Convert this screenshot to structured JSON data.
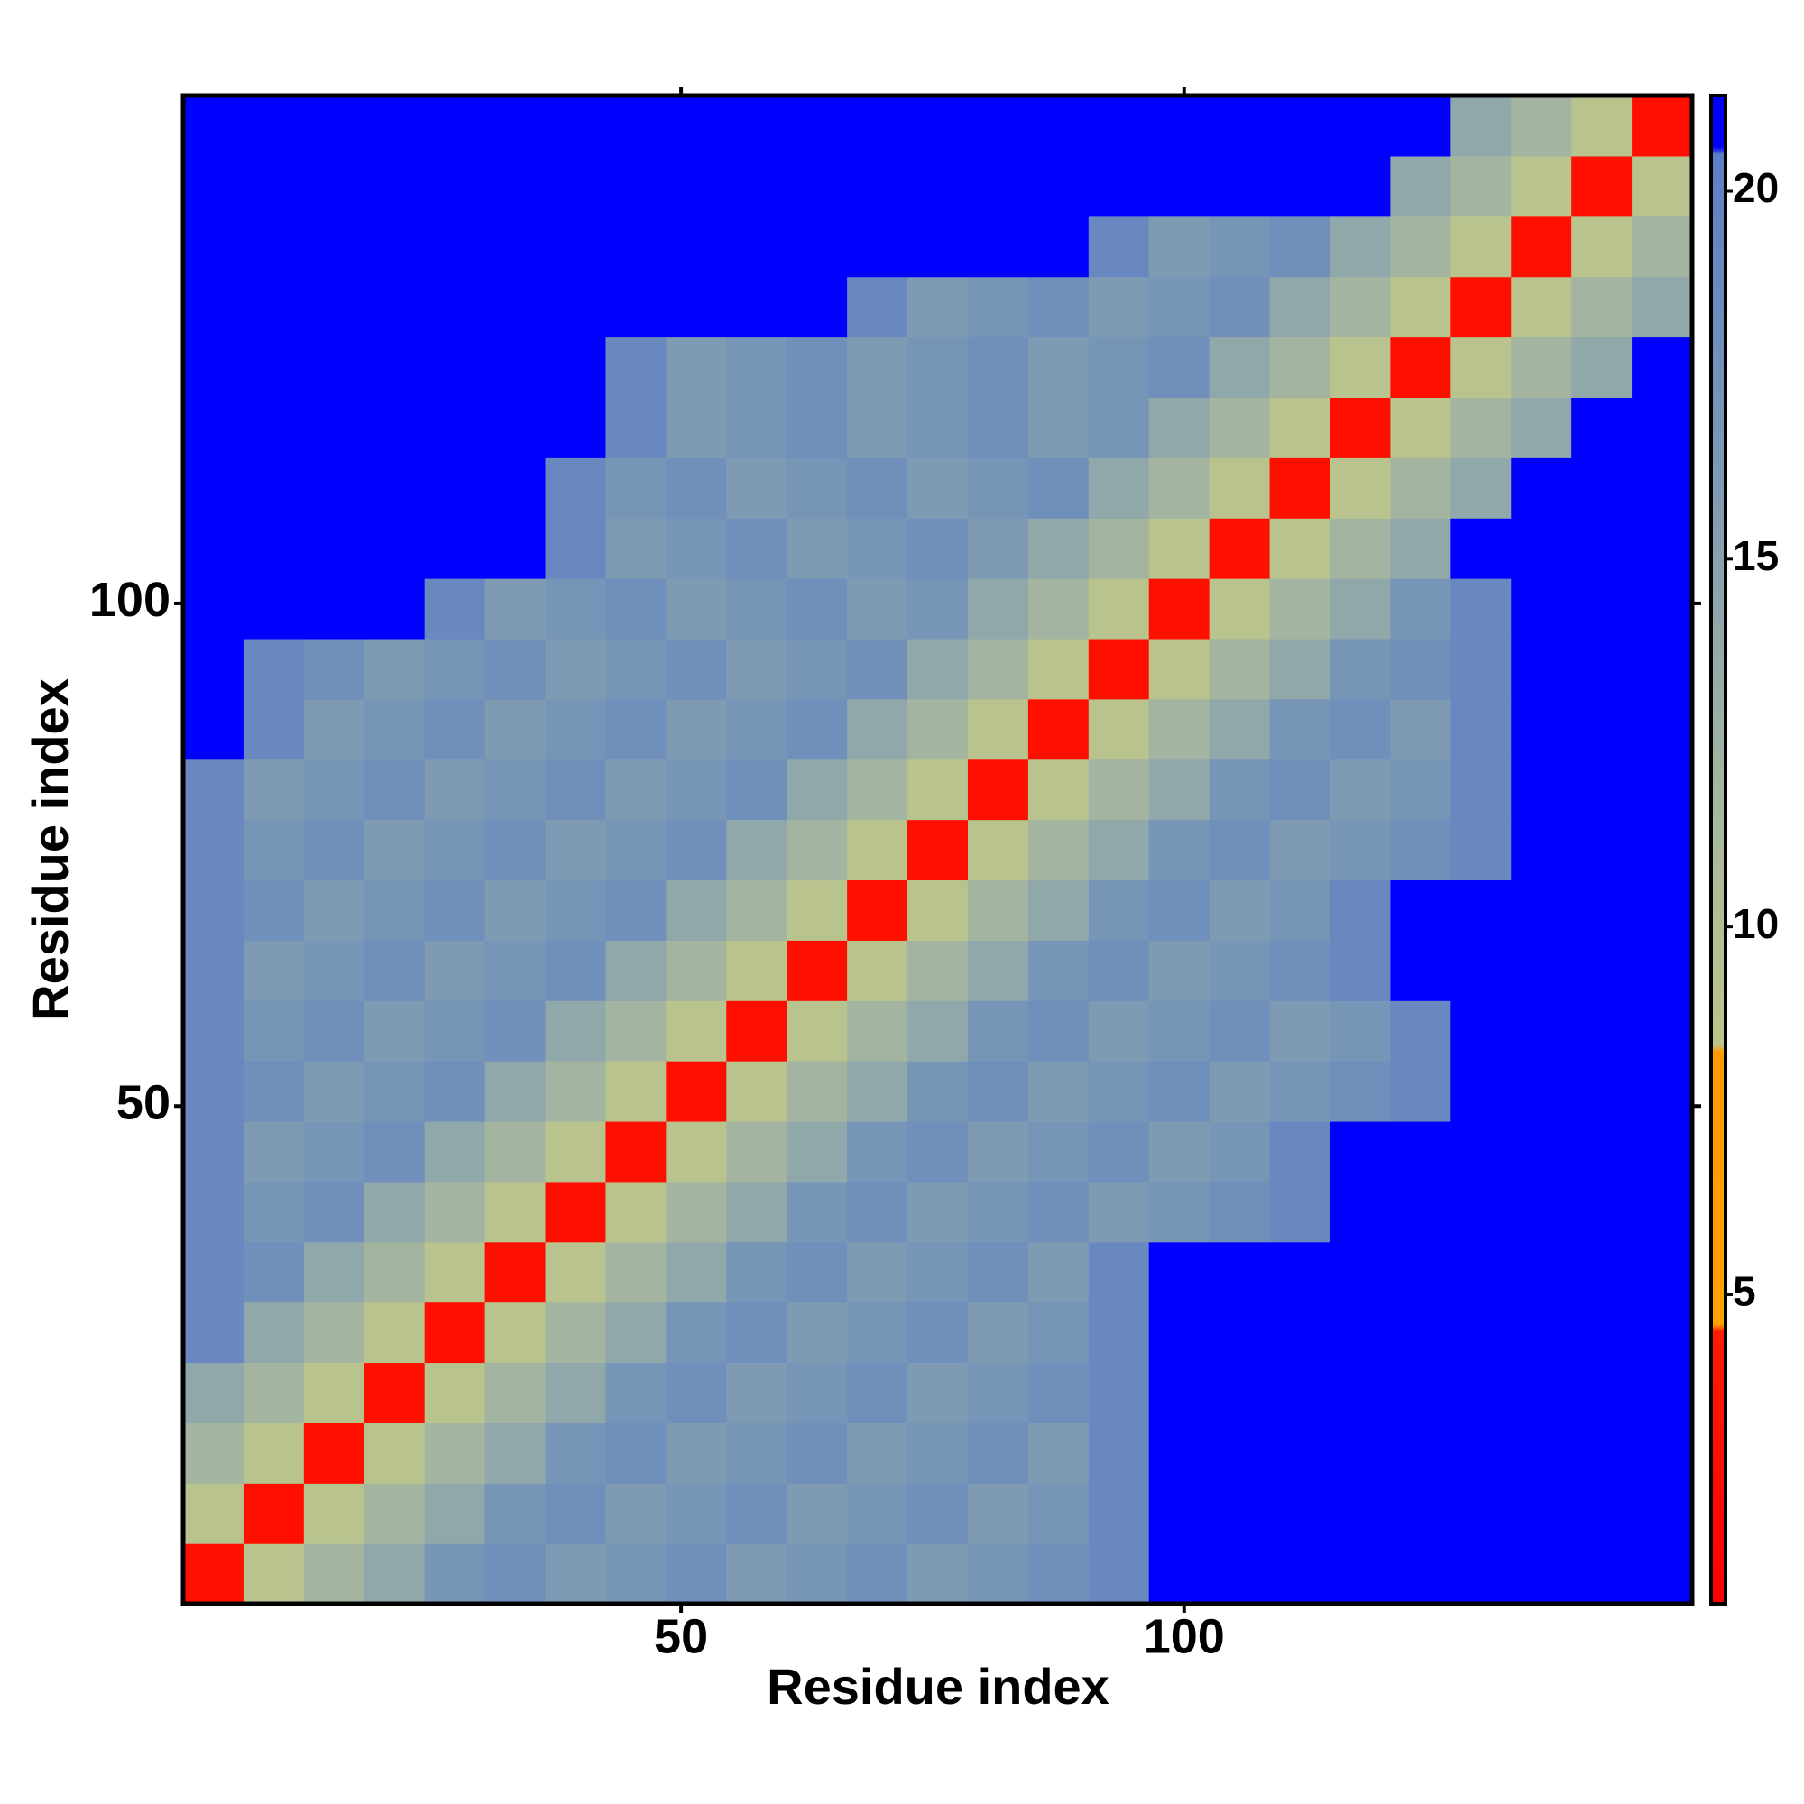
{
  "chart_data": {
    "type": "heatmap",
    "x_label": "Residue index",
    "y_label": "Residue index",
    "x": [
      3.5,
      9.5,
      15.5,
      21.5,
      27.5,
      33.5,
      39.5,
      45.5,
      51.5,
      57.5,
      63.5,
      69.5,
      75.5,
      81.5,
      87.5,
      93.5,
      99.5,
      105.5,
      111.5,
      117.5,
      123.5,
      129.5,
      135.5,
      141.5,
      147.5
    ],
    "y": [
      3.5,
      9.5,
      15.5,
      21.5,
      27.5,
      33.5,
      39.5,
      45.5,
      51.5,
      57.5,
      63.5,
      69.5,
      75.5,
      81.5,
      87.5,
      93.5,
      99.5,
      105.5,
      111.5,
      117.5,
      123.5,
      129.5,
      135.5,
      141.5,
      147.5
    ],
    "xlim": [
      0.5,
      150.5
    ],
    "ylim": [
      0.5,
      150.5
    ],
    "xticks": [
      50,
      100
    ],
    "yticks": [
      50,
      100
    ],
    "z": [
      [
        3,
        9,
        12,
        14,
        17,
        18,
        16,
        17,
        18,
        16,
        17,
        18,
        16,
        17,
        18,
        19,
        21,
        21,
        21,
        21,
        21,
        21,
        21,
        21,
        21
      ],
      [
        9,
        3,
        9,
        12,
        14,
        17,
        18,
        16,
        17,
        18,
        16,
        17,
        18,
        16,
        17,
        19,
        21,
        21,
        21,
        21,
        21,
        21,
        21,
        21,
        21
      ],
      [
        12,
        9,
        3,
        9,
        12,
        14,
        17,
        18,
        16,
        17,
        18,
        16,
        17,
        18,
        16,
        19,
        21,
        21,
        21,
        21,
        21,
        21,
        21,
        21,
        21
      ],
      [
        14,
        12,
        9,
        3,
        9,
        12,
        14,
        17,
        18,
        16,
        17,
        18,
        16,
        17,
        18,
        19,
        21,
        21,
        21,
        21,
        21,
        21,
        21,
        21,
        21
      ],
      [
        19,
        14,
        12,
        9,
        3,
        9,
        12,
        14,
        17,
        18,
        16,
        17,
        18,
        16,
        17,
        19,
        21,
        21,
        21,
        21,
        21,
        21,
        21,
        21,
        21
      ],
      [
        19,
        18,
        14,
        12,
        9,
        3,
        9,
        12,
        14,
        17,
        18,
        16,
        17,
        18,
        16,
        19,
        21,
        21,
        21,
        21,
        21,
        21,
        21,
        21,
        21
      ],
      [
        19,
        17,
        18,
        14,
        12,
        9,
        3,
        9,
        12,
        14,
        17,
        18,
        16,
        17,
        18,
        16,
        17,
        18,
        19,
        21,
        21,
        21,
        21,
        21,
        21
      ],
      [
        19,
        16,
        17,
        18,
        14,
        12,
        9,
        3,
        9,
        12,
        14,
        17,
        18,
        16,
        17,
        18,
        16,
        17,
        19,
        21,
        21,
        21,
        21,
        21,
        21
      ],
      [
        19,
        18,
        16,
        17,
        18,
        14,
        12,
        9,
        3,
        9,
        12,
        14,
        17,
        18,
        16,
        17,
        18,
        16,
        17,
        18,
        19,
        21,
        21,
        21,
        21
      ],
      [
        19,
        17,
        18,
        16,
        17,
        18,
        14,
        12,
        9,
        3,
        9,
        12,
        14,
        17,
        18,
        16,
        17,
        18,
        16,
        17,
        19,
        21,
        21,
        21,
        21
      ],
      [
        19,
        16,
        17,
        18,
        16,
        17,
        18,
        14,
        12,
        9,
        3,
        9,
        12,
        14,
        17,
        18,
        16,
        17,
        18,
        19,
        21,
        21,
        21,
        21,
        21
      ],
      [
        19,
        18,
        16,
        17,
        18,
        16,
        17,
        18,
        14,
        12,
        9,
        3,
        9,
        12,
        14,
        17,
        18,
        16,
        17,
        19,
        21,
        21,
        21,
        21,
        21
      ],
      [
        19,
        17,
        18,
        16,
        17,
        18,
        16,
        17,
        18,
        14,
        12,
        9,
        3,
        9,
        12,
        14,
        17,
        18,
        16,
        17,
        18,
        19,
        21,
        21,
        21
      ],
      [
        19,
        16,
        17,
        18,
        16,
        17,
        18,
        16,
        17,
        18,
        14,
        12,
        9,
        3,
        9,
        12,
        14,
        17,
        18,
        16,
        17,
        19,
        21,
        21,
        21
      ],
      [
        21,
        19,
        16,
        17,
        18,
        16,
        17,
        18,
        16,
        17,
        18,
        14,
        12,
        9,
        3,
        9,
        12,
        14,
        17,
        18,
        16,
        19,
        21,
        21,
        21
      ],
      [
        21,
        19,
        18,
        16,
        17,
        18,
        16,
        17,
        18,
        16,
        17,
        18,
        14,
        12,
        9,
        3,
        9,
        12,
        14,
        17,
        18,
        19,
        21,
        21,
        21
      ],
      [
        21,
        21,
        21,
        21,
        19,
        16,
        17,
        18,
        16,
        17,
        18,
        16,
        17,
        14,
        12,
        9,
        3,
        9,
        12,
        14,
        17,
        19,
        21,
        21,
        21
      ],
      [
        21,
        21,
        21,
        21,
        21,
        21,
        19,
        16,
        17,
        18,
        16,
        17,
        18,
        16,
        14,
        12,
        9,
        3,
        9,
        12,
        14,
        21,
        21,
        21,
        21
      ],
      [
        21,
        21,
        21,
        21,
        21,
        21,
        19,
        17,
        18,
        16,
        17,
        18,
        16,
        17,
        18,
        14,
        12,
        9,
        3,
        9,
        12,
        14,
        21,
        21,
        21
      ],
      [
        21,
        21,
        21,
        21,
        21,
        21,
        21,
        19,
        16,
        17,
        18,
        16,
        17,
        18,
        16,
        17,
        14,
        12,
        9,
        3,
        9,
        12,
        14,
        21,
        21
      ],
      [
        21,
        21,
        21,
        21,
        21,
        21,
        21,
        19,
        16,
        17,
        18,
        16,
        17,
        18,
        16,
        17,
        18,
        14,
        12,
        9,
        3,
        9,
        12,
        14,
        21
      ],
      [
        21,
        21,
        21,
        21,
        21,
        21,
        21,
        21,
        21,
        21,
        21,
        19,
        16,
        17,
        18,
        16,
        17,
        18,
        14,
        12,
        9,
        3,
        9,
        12,
        14
      ],
      [
        21,
        21,
        21,
        21,
        21,
        21,
        21,
        21,
        21,
        21,
        21,
        21,
        21,
        21,
        21,
        19,
        16,
        17,
        18,
        14,
        12,
        9,
        3,
        9,
        12
      ],
      [
        21,
        21,
        21,
        21,
        21,
        21,
        21,
        21,
        21,
        21,
        21,
        21,
        21,
        21,
        21,
        21,
        21,
        21,
        21,
        21,
        14,
        12,
        9,
        3,
        9
      ],
      [
        21,
        21,
        21,
        21,
        21,
        21,
        21,
        21,
        21,
        21,
        21,
        21,
        21,
        21,
        21,
        21,
        21,
        21,
        21,
        21,
        21,
        14,
        12,
        9,
        3
      ]
    ],
    "clim": [
      0.8,
      21.3
    ],
    "cticks": [
      5,
      10,
      15,
      20
    ],
    "colorscale": [
      [
        0.8,
        "#ff0000"
      ],
      [
        4.5,
        "#ff1a00"
      ],
      [
        4.6,
        "#ffa200"
      ],
      [
        8.3,
        "#ff9900"
      ],
      [
        8.4,
        "#bcc68a"
      ],
      [
        12,
        "#a3b5a0"
      ],
      [
        16,
        "#7f9bb3"
      ],
      [
        20.5,
        "#5d7fc5"
      ],
      [
        20.6,
        "#0000ff"
      ],
      [
        21.3,
        "#0000ff"
      ]
    ]
  }
}
